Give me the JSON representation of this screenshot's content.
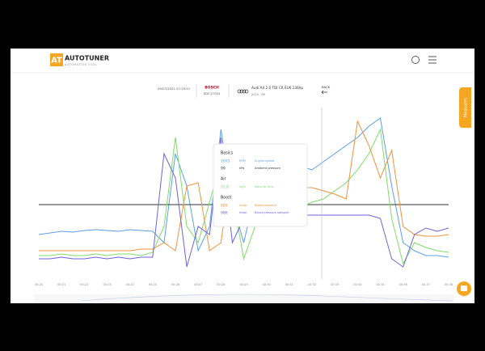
{
  "header": {
    "logo_mark": "AT",
    "brand": "AUTOTUNER",
    "tagline": "AUTOMOTIVE TOOL"
  },
  "session": {
    "date": "09/07/2021 07:29:51",
    "ecu_brand": "BOSCH",
    "ecu_model": "EDC17C64",
    "vehicle": "Audi A4 2.0 TDI CR EU6 136hp",
    "vehicle_sub": "2015 - B9",
    "back": "BACK"
  },
  "side_tab": "Measures",
  "chart_data": {
    "type": "line",
    "ylim": [
      0,
      100
    ],
    "categories": [
      "00:20",
      null,
      "00:21",
      null,
      "00:22",
      null,
      "00:23",
      null,
      "00:24",
      null,
      "00:25",
      null,
      "00:26",
      null,
      "00:27",
      null,
      "00:28",
      null,
      "00:29",
      null,
      "00:30",
      null,
      "00:31",
      null,
      "00:32",
      null,
      "00:33",
      null,
      "00:34",
      null,
      "00:35",
      null,
      "00:36",
      null,
      "00:37",
      null,
      "00:38"
    ],
    "groups": [
      {
        "title": "Basics",
        "series": [
          {
            "name": "Engine speed",
            "unit": "RPM",
            "readout": 1693,
            "color": "#5aa0e6",
            "values": [
              25,
              26,
              27,
              26.5,
              27.5,
              28,
              27.5,
              27,
              28,
              27.5,
              27,
              20,
              75,
              55,
              15,
              30,
              90,
              45,
              20,
              50,
              57,
              65,
              67,
              67,
              65,
              70,
              75,
              80,
              85,
              92,
              97,
              55,
              20,
              15,
              12,
              12,
              11
            ]
          },
          {
            "name": "Ambient pressure",
            "unit": "kPa",
            "readout": 99,
            "color": "#333333",
            "values": [
              43.5,
              43.5,
              43.5,
              43.5,
              43.5,
              43.5,
              43.5,
              43.5,
              43.5,
              43.5,
              43.5,
              43.5,
              43.5,
              43.5,
              43.5,
              43.5,
              43.5,
              43.5,
              43.5,
              43.5,
              43.5,
              43.5,
              43.5,
              43.5,
              43.5,
              43.5,
              43.5,
              43.5,
              43.5,
              43.5,
              43.5,
              43.5,
              43.5,
              43.5,
              43.5,
              43.5,
              43.5
            ]
          }
        ]
      },
      {
        "title": "Air",
        "series": [
          {
            "name": "Mass air flow",
            "unit": "kg/h",
            "readout": 91.8,
            "color": "#7fdc6a",
            "values": [
              12,
              12,
              13,
              12,
              12,
              13,
              12,
              13,
              13,
              12,
              14,
              30,
              85,
              30,
              20,
              45,
              70,
              50,
              10,
              30,
              35,
              40,
              41,
              42,
              45,
              47,
              52,
              57,
              65,
              75,
              90,
              35,
              7,
              20,
              17,
              15,
              14
            ]
          }
        ]
      },
      {
        "title": "Boost",
        "series": [
          {
            "name": "Boost pressure",
            "unit": "mbar",
            "readout": 889,
            "color": "#f0923e",
            "values": [
              15,
              15,
              15,
              15,
              15,
              15,
              15,
              15,
              15,
              16,
              16,
              20,
              15,
              55,
              57,
              15,
              20,
              70,
              47,
              50,
              52,
              53,
              53,
              54,
              54,
              52,
              50,
              47,
              95,
              80,
              60,
              77,
              30,
              25,
              24,
              24,
              25
            ]
          },
          {
            "name": "Boost pressure setpoint",
            "unit": "mbar",
            "readout": 986,
            "color": "#6d62d8",
            "values": [
              10,
              10,
              11,
              10,
              10,
              11,
              10,
              11,
              10,
              11,
              11,
              75,
              60,
              5,
              30,
              25,
              85,
              20,
              35,
              36,
              37,
              37,
              37,
              37,
              37,
              37,
              37,
              37,
              37,
              37,
              35,
              10,
              5,
              25,
              29,
              27,
              29
            ]
          }
        ]
      }
    ]
  }
}
